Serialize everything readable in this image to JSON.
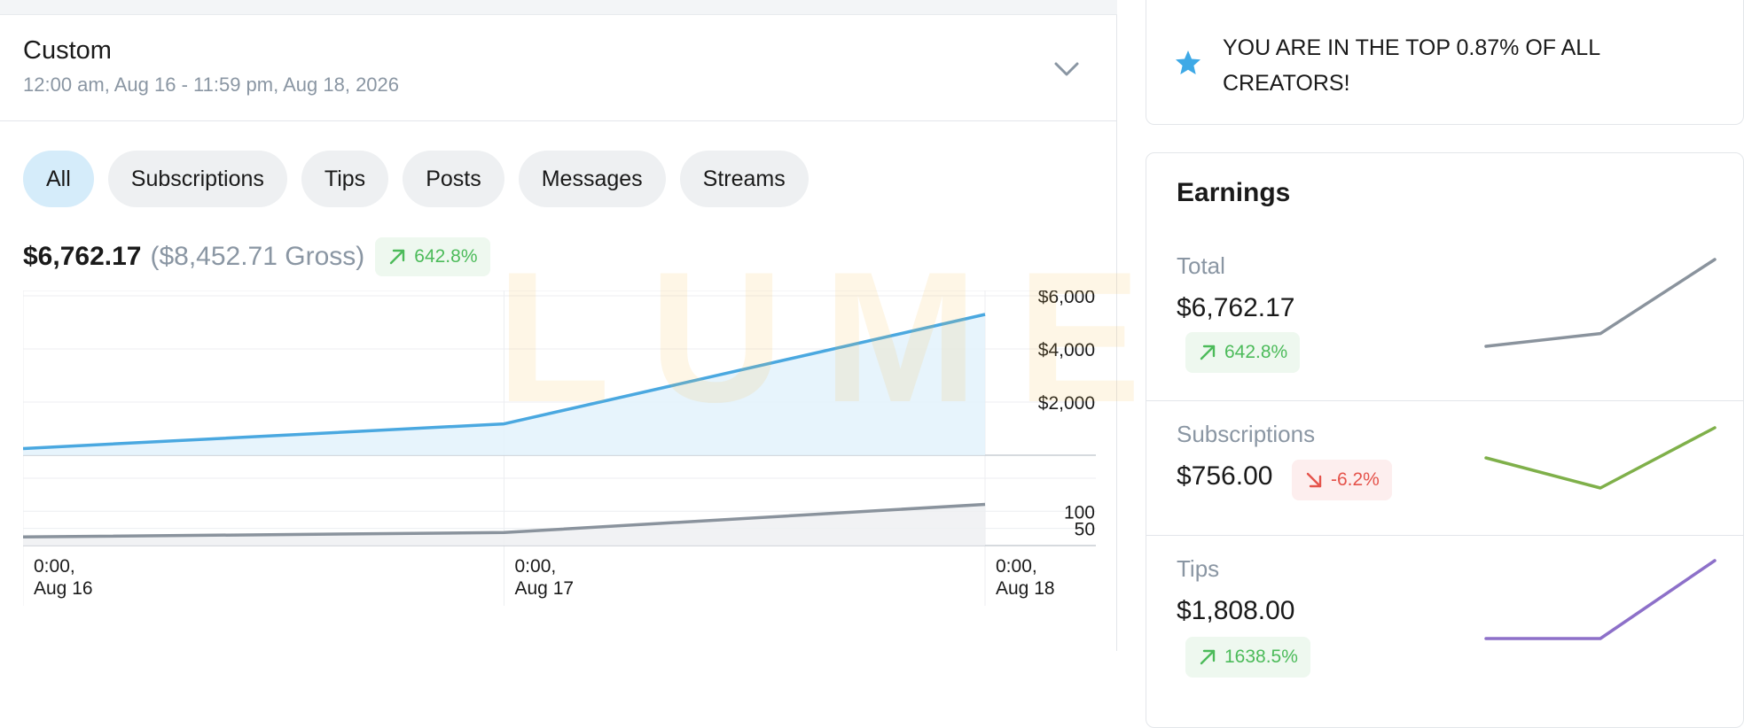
{
  "period": {
    "title": "Custom",
    "range": "12:00 am, Aug 16 - 11:59 pm, Aug 18, 2026"
  },
  "filters": [
    "All",
    "Subscriptions",
    "Tips",
    "Posts",
    "Messages",
    "Streams"
  ],
  "active_filter": "All",
  "summary": {
    "net": "$6,762.17",
    "gross": "($8,452.71 Gross)",
    "change": "642.8%"
  },
  "watermark": "LUMEN",
  "chart_data": {
    "type": "area",
    "x": [
      "0:00, Aug 16",
      "0:00, Aug 17",
      "0:00, Aug 18"
    ],
    "x_tick_lines": [
      [
        "0:00,",
        "Aug 16"
      ],
      [
        "0:00,",
        "Aug 17"
      ],
      [
        "0:00,",
        "Aug 18"
      ]
    ],
    "panels": [
      {
        "values": [
          250,
          1180,
          5300
        ],
        "ylim": [
          0,
          6000
        ],
        "yticks": [
          "$6,000",
          "$4,000",
          "$2,000"
        ],
        "ytick_values": [
          6000,
          4000,
          2000
        ],
        "color": "#4aa8e0",
        "fill": "#e3f2fb"
      },
      {
        "values": [
          25,
          38,
          120
        ],
        "ylim": [
          0,
          160
        ],
        "yticks": [
          "100",
          "50"
        ],
        "ytick_values": [
          100,
          50
        ],
        "color": "#8a939d",
        "fill": "#eef0f2"
      }
    ],
    "grid": true
  },
  "promo": {
    "text": "YOU ARE IN THE TOP 0.87% OF ALL CREATORS!",
    "icon": "star-icon",
    "icon_color": "#3ea9e6"
  },
  "earnings": {
    "title": "Earnings",
    "rows": [
      {
        "label": "Total",
        "value": "$6,762.17",
        "change": "642.8%",
        "direction": "up",
        "spark": [
          3100,
          3700,
          7200
        ],
        "color": "#8a939d"
      },
      {
        "label": "Subscriptions",
        "value": "$756.00",
        "change": "-6.2%",
        "direction": "down",
        "spark": [
          950,
          800,
          1100
        ],
        "color": "#7fb04a"
      },
      {
        "label": "Tips",
        "value": "$1,808.00",
        "change": "1638.5%",
        "direction": "up",
        "spark": [
          100,
          100,
          1808
        ],
        "color": "#8d70c9"
      }
    ]
  }
}
